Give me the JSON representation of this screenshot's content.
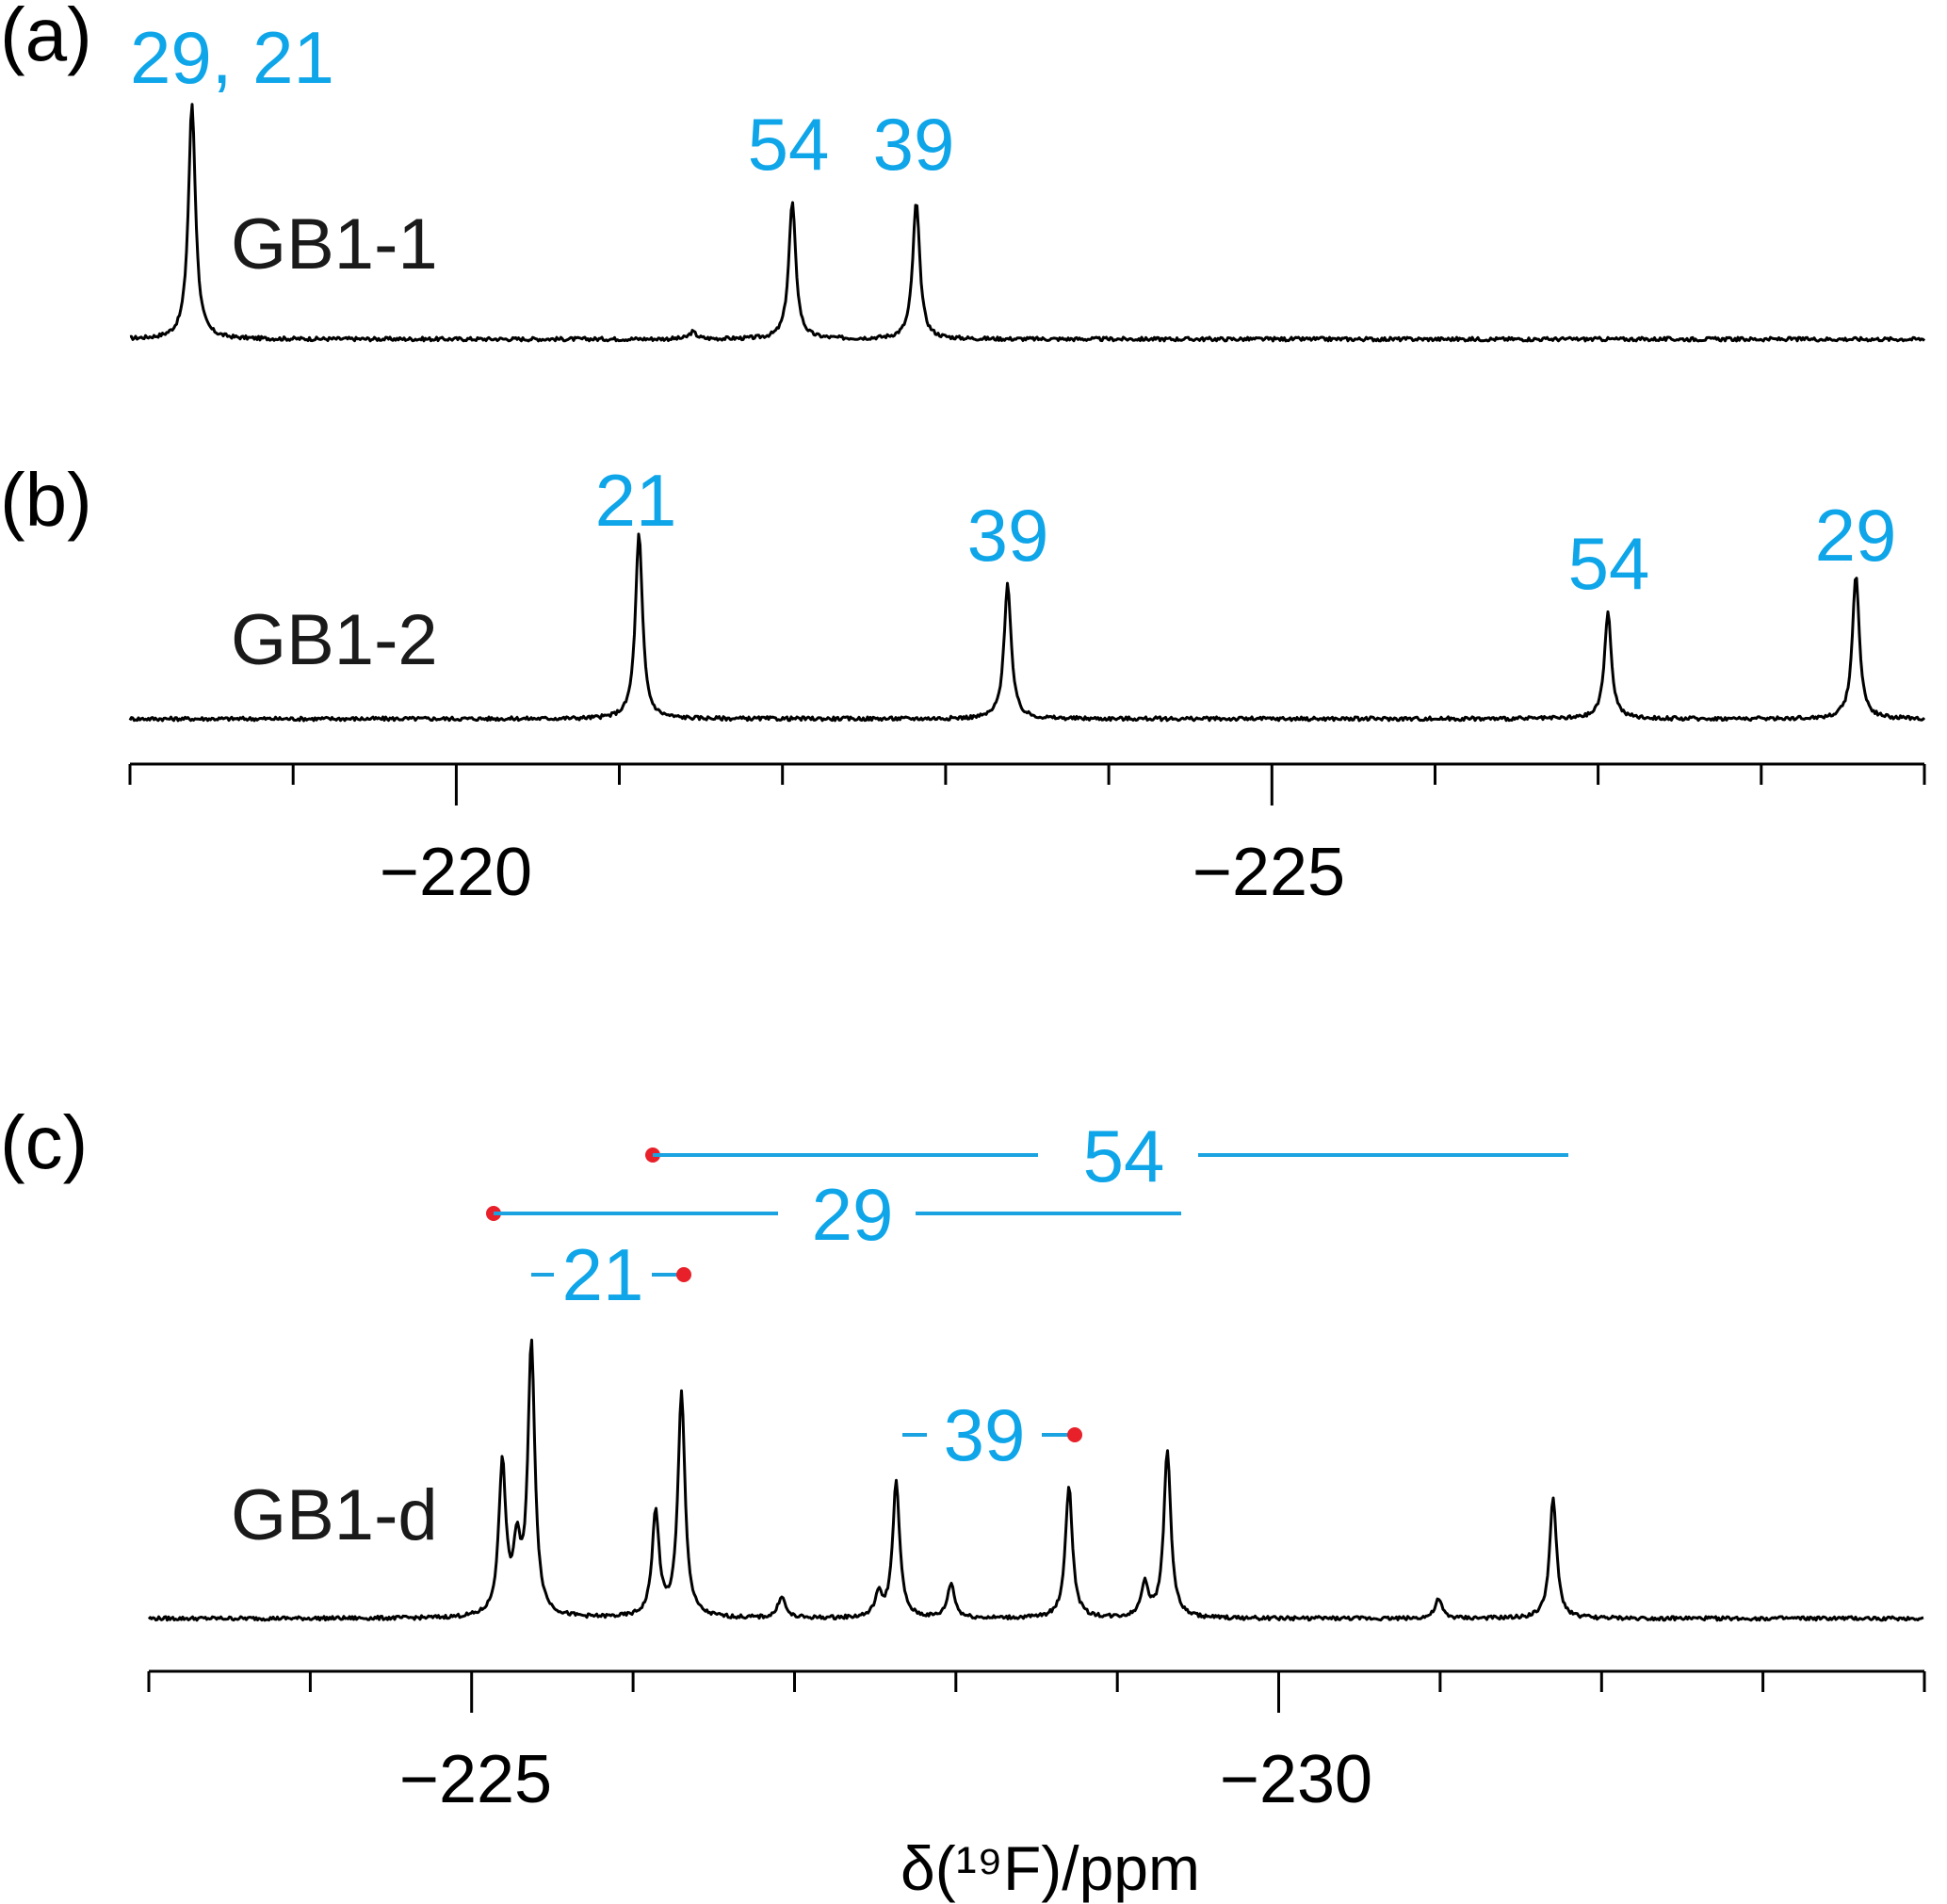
{
  "figure": {
    "panels": [
      {
        "letter": "(a)",
        "sample": "GB1-1",
        "x_axis": "top",
        "peak_labels": [
          {
            "text": "29, 21",
            "ppm": -218.8
          },
          {
            "text": "54",
            "ppm": -222.06
          },
          {
            "text": "39",
            "ppm": -222.82
          }
        ]
      },
      {
        "letter": "(b)",
        "sample": "GB1-2",
        "x_axis": "top",
        "peak_labels": [
          {
            "text": "21",
            "ppm": -221.12
          },
          {
            "text": "39",
            "ppm": -223.38
          },
          {
            "text": "54",
            "ppm": -227.06
          },
          {
            "text": "29",
            "ppm": -228.58
          }
        ]
      },
      {
        "letter": "(c)",
        "sample": "GB1-d",
        "x_axis": "bottom",
        "peak_labels": [
          {
            "text": "54"
          },
          {
            "text": "29"
          },
          {
            "text": "21"
          },
          {
            "text": "39"
          }
        ]
      }
    ],
    "axis_top": {
      "ticks": [
        "−220",
        "−225"
      ]
    },
    "axis_bottom": {
      "ticks": [
        "−225",
        "−230"
      ],
      "title": "δ(¹⁹F)/ppm"
    }
  },
  "chart_data": [
    {
      "type": "line",
      "panel": "(a)",
      "sample": "GB1-1",
      "x_unit": "ppm",
      "xlim": [
        -218.0,
        -229.0
      ],
      "peaks": [
        {
          "x": -218.38,
          "height": 1.0,
          "label": "29, 21"
        },
        {
          "x": -221.45,
          "height": 0.03,
          "label": ""
        },
        {
          "x": -222.06,
          "height": 0.58,
          "label": "54"
        },
        {
          "x": -222.82,
          "height": 0.58,
          "label": "39"
        }
      ]
    },
    {
      "type": "line",
      "panel": "(b)",
      "sample": "GB1-2",
      "x_unit": "ppm",
      "xlim": [
        -218.0,
        -229.0
      ],
      "peaks": [
        {
          "x": -221.12,
          "height": 0.49,
          "label": "21"
        },
        {
          "x": -223.38,
          "height": 0.36,
          "label": "39"
        },
        {
          "x": -227.06,
          "height": 0.28,
          "label": "54"
        },
        {
          "x": -228.58,
          "height": 0.38,
          "label": "29"
        }
      ],
      "axis": {
        "ticks": [
          -220,
          -225
        ],
        "minor_step": 1
      }
    },
    {
      "type": "line",
      "panel": "(c)",
      "sample": "GB1-d",
      "x_unit": "ppm",
      "xlim": [
        -223.0,
        -234.0
      ],
      "peaks": [
        {
          "x": -225.19,
          "height": 0.48
        },
        {
          "x": -225.28,
          "height": 0.2
        },
        {
          "x": -225.37,
          "height": 0.86
        },
        {
          "x": -226.14,
          "height": 0.33
        },
        {
          "x": -226.3,
          "height": 0.71
        },
        {
          "x": -226.92,
          "height": 0.07
        },
        {
          "x": -227.52,
          "height": 0.07
        },
        {
          "x": -227.63,
          "height": 0.43
        },
        {
          "x": -227.97,
          "height": 0.11
        },
        {
          "x": -228.7,
          "height": 0.42
        },
        {
          "x": -229.17,
          "height": 0.11
        },
        {
          "x": -229.31,
          "height": 0.53
        },
        {
          "x": -230.99,
          "height": 0.06
        },
        {
          "x": -231.7,
          "height": 0.38
        }
      ],
      "assignments": [
        {
          "label": "54",
          "x_from": -226.12,
          "x_to": -231.67
        },
        {
          "label": "29",
          "x_from": -225.14,
          "x_to": -229.31
        },
        {
          "label": "21",
          "x_from": -226.3
        },
        {
          "label": "39",
          "x_from": -228.7
        }
      ],
      "axis": {
        "ticks": [
          -225,
          -230
        ],
        "minor_step": 1,
        "xlabel": "δ(¹⁹F)/ppm"
      }
    }
  ]
}
